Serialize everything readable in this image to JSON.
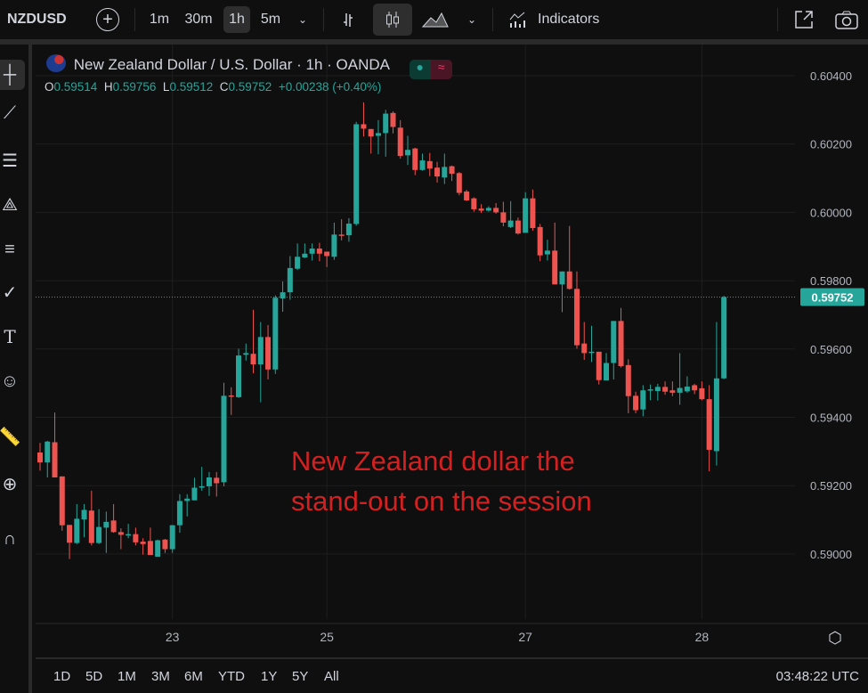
{
  "toolbar": {
    "symbol": "NZDUSD",
    "intervals": [
      "1m",
      "30m",
      "1h",
      "5m"
    ],
    "active_interval": "1h",
    "indicators_label": "Indicators",
    "active_chart_type": "candles"
  },
  "legend": {
    "title": "New Zealand Dollar / U.S. Dollar · 1h · OANDA",
    "o_label": "O",
    "o": "0.59514",
    "h_label": "H",
    "h": "0.59756",
    "l_label": "L",
    "l": "0.59512",
    "c_label": "C",
    "c": "0.59752",
    "change": "+0.00238 (+0.40%)"
  },
  "annotation": {
    "line1": "New Zealand dollar the",
    "line2": "stand-out on the session"
  },
  "bottom": {
    "ranges": [
      "1D",
      "5D",
      "1M",
      "3M",
      "6M",
      "YTD",
      "1Y",
      "5Y",
      "All"
    ],
    "clock": "03:48:22 UTC"
  },
  "colors": {
    "up": "#26a69a",
    "down": "#ef5350",
    "annotation": "#d42020",
    "last_price_bg": "#26a69a"
  },
  "chart_data": {
    "type": "candlestick",
    "ylim": [
      0.5885,
      0.6047
    ],
    "y_ticks": [
      "0.60400",
      "0.60200",
      "0.60000",
      "0.59800",
      "0.59600",
      "0.59400",
      "0.59200",
      "0.59000"
    ],
    "x_ticks": [
      {
        "label": "23",
        "at_candle": 18
      },
      {
        "label": "25",
        "at_candle": 39
      },
      {
        "label": "27",
        "at_candle": 66
      },
      {
        "label": "28",
        "at_candle": 90
      }
    ],
    "last_price": "0.59752",
    "grid": true,
    "ohlc": [
      [
        0.59297,
        0.59325,
        0.59244,
        0.59268
      ],
      [
        0.59268,
        0.59331,
        0.59224,
        0.59329
      ],
      [
        0.59327,
        0.59414,
        0.59224,
        0.59224
      ],
      [
        0.59227,
        0.59227,
        0.59068,
        0.59084
      ],
      [
        0.59085,
        0.59085,
        0.58985,
        0.59033
      ],
      [
        0.59032,
        0.59146,
        0.59029,
        0.59103
      ],
      [
        0.59101,
        0.59146,
        0.59049,
        0.59129
      ],
      [
        0.59127,
        0.59185,
        0.59025,
        0.59032
      ],
      [
        0.59032,
        0.59131,
        0.59029,
        0.59079
      ],
      [
        0.59077,
        0.59124,
        0.59003,
        0.59094
      ],
      [
        0.59098,
        0.59146,
        0.59062,
        0.59064
      ],
      [
        0.59064,
        0.59075,
        0.59014,
        0.59056
      ],
      [
        0.59054,
        0.59088,
        0.59046,
        0.59058
      ],
      [
        0.59058,
        0.59077,
        0.59025,
        0.59034
      ],
      [
        0.59036,
        0.59046,
        0.58998,
        0.59029
      ],
      [
        0.59038,
        0.59077,
        0.58997,
        0.58997
      ],
      [
        0.58992,
        0.59042,
        0.58992,
        0.5904
      ],
      [
        0.59042,
        0.59044,
        0.59003,
        0.59014
      ],
      [
        0.59014,
        0.59085,
        0.59003,
        0.59084
      ],
      [
        0.59084,
        0.59175,
        0.59062,
        0.59155
      ],
      [
        0.59155,
        0.59175,
        0.5911,
        0.59162
      ],
      [
        0.59157,
        0.59223,
        0.59157,
        0.59194
      ],
      [
        0.59194,
        0.59255,
        0.59185,
        0.59198
      ],
      [
        0.59198,
        0.5924,
        0.5917,
        0.59224
      ],
      [
        0.59223,
        0.5924,
        0.59168,
        0.59207
      ],
      [
        0.5921,
        0.59501,
        0.59198,
        0.59463
      ],
      [
        0.59464,
        0.59488,
        0.59407,
        0.59461
      ],
      [
        0.59459,
        0.59601,
        0.59457,
        0.59581
      ],
      [
        0.59583,
        0.59616,
        0.59566,
        0.59588
      ],
      [
        0.59586,
        0.59715,
        0.59529,
        0.59555
      ],
      [
        0.59555,
        0.59679,
        0.59444,
        0.59635
      ],
      [
        0.59635,
        0.5967,
        0.59511,
        0.5954
      ],
      [
        0.5954,
        0.59757,
        0.59527,
        0.5975
      ],
      [
        0.59748,
        0.59798,
        0.59709,
        0.59766
      ],
      [
        0.59766,
        0.59872,
        0.59744,
        0.59837
      ],
      [
        0.59835,
        0.59909,
        0.59831,
        0.5987
      ],
      [
        0.59868,
        0.59909,
        0.59866,
        0.59879
      ],
      [
        0.59879,
        0.59909,
        0.59859,
        0.59894
      ],
      [
        0.59894,
        0.59911,
        0.59857,
        0.59879
      ],
      [
        0.59885,
        0.59885,
        0.5984,
        0.59872
      ],
      [
        0.5987,
        0.5997,
        0.59861,
        0.59935
      ],
      [
        0.59935,
        0.5998,
        0.59918,
        0.59933
      ],
      [
        0.59933,
        0.59983,
        0.59914,
        0.59967
      ],
      [
        0.59966,
        0.60265,
        0.59961,
        0.60258
      ],
      [
        0.60258,
        0.60322,
        0.60222,
        0.60245
      ],
      [
        0.60244,
        0.60244,
        0.60172,
        0.60222
      ],
      [
        0.60224,
        0.6027,
        0.6017,
        0.60232
      ],
      [
        0.60232,
        0.603,
        0.60163,
        0.60289
      ],
      [
        0.60291,
        0.60296,
        0.60231,
        0.6025
      ],
      [
        0.60248,
        0.6027,
        0.60157,
        0.60165
      ],
      [
        0.60167,
        0.60224,
        0.60139,
        0.60183
      ],
      [
        0.60187,
        0.60189,
        0.60109,
        0.60124
      ],
      [
        0.60124,
        0.60172,
        0.60122,
        0.60152
      ],
      [
        0.6015,
        0.60174,
        0.60106,
        0.60128
      ],
      [
        0.60131,
        0.60148,
        0.60087,
        0.60105
      ],
      [
        0.60102,
        0.60172,
        0.60083,
        0.60133
      ],
      [
        0.60135,
        0.60137,
        0.60092,
        0.60113
      ],
      [
        0.60115,
        0.60118,
        0.6005,
        0.60057
      ],
      [
        0.60061,
        0.60066,
        0.60033,
        0.60035
      ],
      [
        0.60041,
        0.60044,
        0.60002,
        0.60009
      ],
      [
        0.60011,
        0.60024,
        0.59998,
        0.60005
      ],
      [
        0.60005,
        0.60018,
        0.60002,
        0.60013
      ],
      [
        0.60013,
        0.60027,
        0.59996,
        0.6
      ],
      [
        0.6,
        0.60031,
        0.59959,
        0.5997
      ],
      [
        0.59957,
        0.60033,
        0.59954,
        0.59976
      ],
      [
        0.59976,
        0.59985,
        0.59935,
        0.59938
      ],
      [
        0.5994,
        0.60059,
        0.5994,
        0.60041
      ],
      [
        0.60041,
        0.60067,
        0.59946,
        0.59954
      ],
      [
        0.59957,
        0.59966,
        0.59857,
        0.59874
      ],
      [
        0.59877,
        0.5992,
        0.59859,
        0.59888
      ],
      [
        0.59888,
        0.5997,
        0.59789,
        0.59789
      ],
      [
        0.59789,
        0.59827,
        0.59708,
        0.59827
      ],
      [
        0.59827,
        0.5996,
        0.59774,
        0.59776
      ],
      [
        0.59776,
        0.59827,
        0.59601,
        0.59611
      ],
      [
        0.59616,
        0.59679,
        0.59568,
        0.59588
      ],
      [
        0.59588,
        0.59668,
        0.59562,
        0.59592
      ],
      [
        0.59592,
        0.59592,
        0.59496,
        0.59509
      ],
      [
        0.59508,
        0.59588,
        0.59508,
        0.59559
      ],
      [
        0.59559,
        0.59682,
        0.59511,
        0.59682
      ],
      [
        0.59682,
        0.5972,
        0.59546,
        0.5955
      ],
      [
        0.59553,
        0.5957,
        0.59412,
        0.59462
      ],
      [
        0.59463,
        0.59475,
        0.59412,
        0.59421
      ],
      [
        0.59423,
        0.59494,
        0.59403,
        0.59479
      ],
      [
        0.59479,
        0.59496,
        0.5945,
        0.59482
      ],
      [
        0.59477,
        0.59498,
        0.59449,
        0.59489
      ],
      [
        0.59489,
        0.59505,
        0.59466,
        0.59475
      ],
      [
        0.59479,
        0.59505,
        0.59462,
        0.59472
      ],
      [
        0.59472,
        0.59588,
        0.59437,
        0.59486
      ],
      [
        0.59476,
        0.5952,
        0.59472,
        0.5949
      ],
      [
        0.59494,
        0.59498,
        0.59468,
        0.59479
      ],
      [
        0.59485,
        0.59505,
        0.5945,
        0.59453
      ],
      [
        0.59453,
        0.59494,
        0.59242,
        0.59305
      ],
      [
        0.59301,
        0.59679,
        0.59259,
        0.59514
      ],
      [
        0.59514,
        0.59756,
        0.59512,
        0.59752
      ]
    ]
  }
}
